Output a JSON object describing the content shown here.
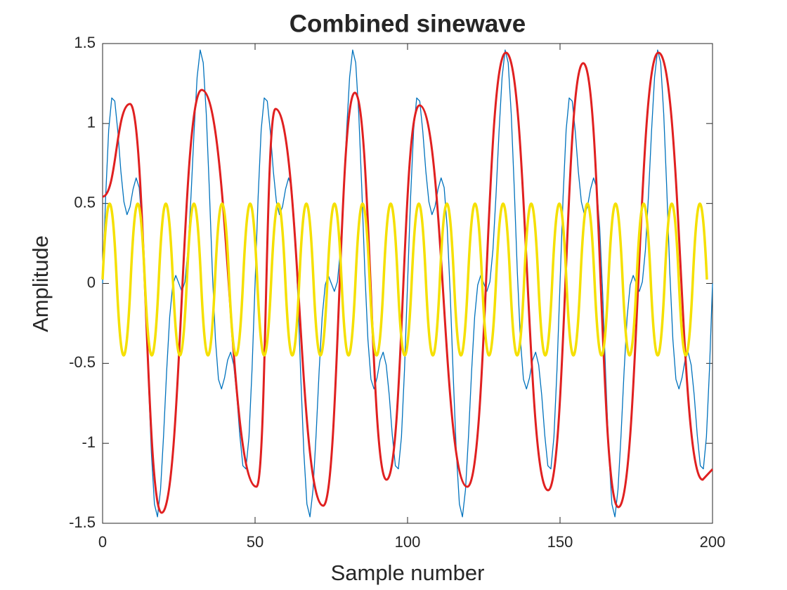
{
  "chart_data": {
    "type": "line",
    "title": "Combined sinewave",
    "xlabel": "Sample number",
    "ylabel": "Amplitude",
    "color": "#0072bd",
    "x": [
      0,
      1,
      2,
      3,
      4,
      5,
      6,
      7,
      8,
      9,
      10,
      11,
      12,
      13,
      14,
      15,
      16,
      17,
      18,
      19,
      20,
      21,
      22,
      23,
      24,
      25,
      26,
      27,
      28,
      29,
      30,
      31,
      32,
      33,
      34,
      35,
      36,
      37,
      38,
      39,
      40,
      41,
      42,
      43,
      44,
      45,
      46,
      47,
      48,
      49,
      50,
      51,
      52,
      53,
      54,
      55,
      56,
      57,
      58,
      59,
      60,
      61,
      62,
      63,
      64,
      65,
      66,
      67,
      68,
      69,
      70,
      71,
      72,
      73,
      74,
      75,
      76,
      77,
      78,
      79,
      80,
      81,
      82,
      83,
      84,
      85,
      86,
      87,
      88,
      89,
      90,
      91,
      92,
      93,
      94,
      95,
      96,
      97,
      98,
      99,
      100,
      101,
      102,
      103,
      104,
      105,
      106,
      107,
      108,
      109,
      110,
      111,
      112,
      113,
      114,
      115,
      116,
      117,
      118,
      119,
      120,
      121,
      122,
      123,
      124,
      125,
      126,
      127,
      128,
      129,
      130,
      131,
      132,
      133,
      134,
      135,
      136,
      137,
      138,
      139,
      140,
      141,
      142,
      143,
      144,
      145,
      146,
      147,
      148,
      149,
      150,
      151,
      152,
      153,
      154,
      155,
      156,
      157,
      158,
      159,
      160,
      161,
      162,
      163,
      164,
      165,
      166,
      167,
      168,
      169,
      170,
      171,
      172,
      173,
      174,
      175,
      176,
      177,
      178,
      179,
      180,
      181,
      182,
      183,
      184,
      185,
      186,
      187,
      188,
      189,
      190,
      191,
      192,
      193,
      194,
      195,
      196,
      197,
      198,
      199,
      200
    ],
    "values": [
      0,
      0.54,
      0.96,
      1.16,
      1.14,
      0.95,
      0.7,
      0.51,
      0.43,
      0.48,
      0.59,
      0.66,
      0.6,
      0.35,
      -0.07,
      -0.59,
      -1.06,
      -1.38,
      -1.46,
      -1.29,
      -0.95,
      -0.55,
      -0.21,
      -0.01,
      0.05,
      0,
      -0.05,
      0.01,
      0.21,
      0.55,
      0.95,
      1.29,
      1.46,
      1.38,
      1.06,
      0.59,
      0.07,
      -0.35,
      -0.6,
      -0.66,
      -0.59,
      -0.48,
      -0.43,
      -0.51,
      -0.7,
      -0.95,
      -1.14,
      -1.16,
      -0.96,
      -0.54,
      0,
      0.54,
      0.96,
      1.16,
      1.14,
      0.95,
      0.7,
      0.51,
      0.43,
      0.48,
      0.59,
      0.66,
      0.6,
      0.35,
      -0.07,
      -0.59,
      -1.06,
      -1.38,
      -1.46,
      -1.29,
      -0.95,
      -0.55,
      -0.21,
      -0.01,
      0.05,
      0,
      -0.05,
      0.01,
      0.21,
      0.55,
      0.95,
      1.29,
      1.46,
      1.38,
      1.06,
      0.59,
      0.07,
      -0.35,
      -0.6,
      -0.66,
      -0.59,
      -0.48,
      -0.43,
      -0.51,
      -0.7,
      -0.95,
      -1.14,
      -1.16,
      -0.96,
      -0.54,
      0,
      0.54,
      0.96,
      1.16,
      1.14,
      0.95,
      0.7,
      0.51,
      0.43,
      0.48,
      0.59,
      0.66,
      0.6,
      0.35,
      -0.07,
      -0.59,
      -1.06,
      -1.38,
      -1.46,
      -1.29,
      -0.95,
      -0.55,
      -0.21,
      -0.01,
      0.05,
      0,
      -0.05,
      0.01,
      0.21,
      0.55,
      0.95,
      1.29,
      1.46,
      1.38,
      1.06,
      0.59,
      0.07,
      -0.35,
      -0.6,
      -0.66,
      -0.59,
      -0.48,
      -0.43,
      -0.51,
      -0.7,
      -0.95,
      -1.14,
      -1.16,
      -0.96,
      -0.54,
      0,
      0.54,
      0.96,
      1.16,
      1.14,
      0.95,
      0.7,
      0.51,
      0.43,
      0.48,
      0.59,
      0.66,
      0.6,
      0.35,
      -0.07,
      -0.59,
      -1.06,
      -1.38,
      -1.46,
      -1.29,
      -0.95,
      -0.55,
      -0.21,
      -0.01,
      0.05,
      0,
      -0.05,
      0.01,
      0.21,
      0.55,
      0.95,
      1.29,
      1.46,
      1.38,
      1.06,
      0.59,
      0.07,
      -0.35,
      -0.6,
      -0.66,
      -0.59,
      -0.48,
      -0.43,
      -0.51,
      -0.7,
      -0.95,
      -1.14,
      -1.16,
      -0.96,
      -0.54,
      0
    ],
    "xlim": [
      0,
      200
    ],
    "xticks": [
      0,
      50,
      100,
      150,
      200
    ],
    "ylim": [
      -1.5,
      1.5
    ],
    "yticks": [
      -1.5,
      -1,
      -0.5,
      0,
      0.5,
      1,
      1.5
    ],
    "grid": false
  }
}
